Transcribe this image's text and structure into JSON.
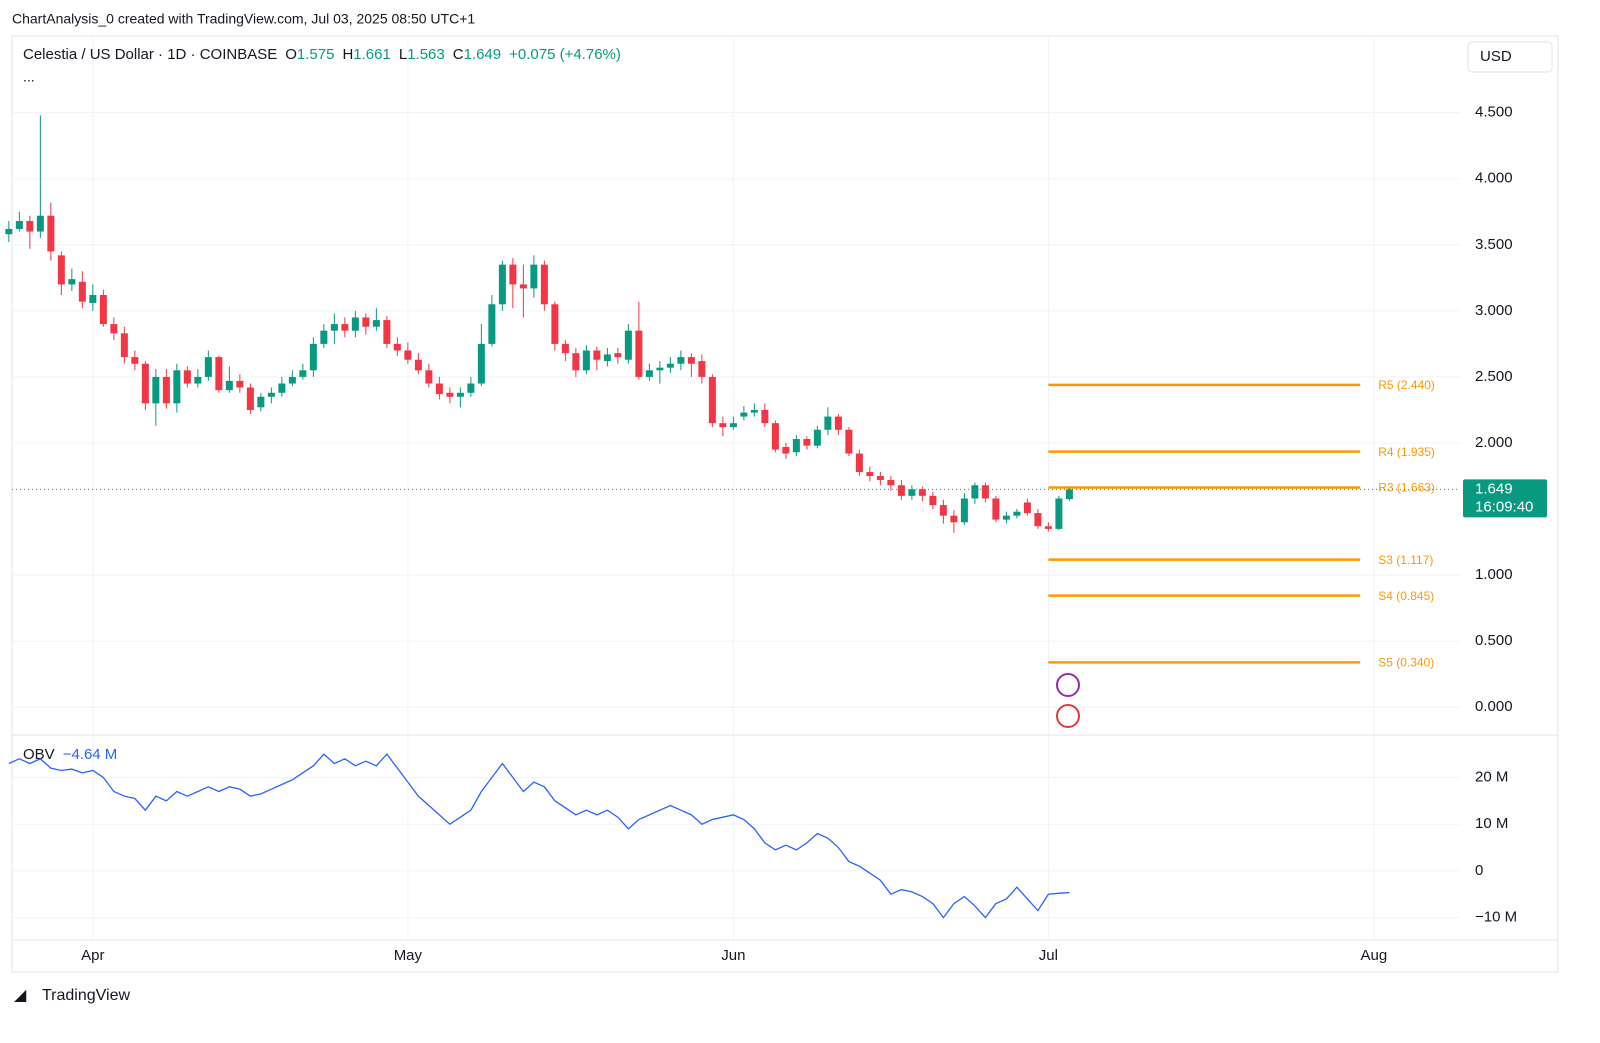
{
  "header": {
    "credit": "ChartAnalysis_0 created with TradingView.com, Jul 03, 2025 08:50 UTC+1",
    "brand": "TradingView",
    "currency_button": "USD"
  },
  "chart_data": {
    "type": "candlestick",
    "title": "Celestia / US Dollar · 1D · COINBASE",
    "ohlc": [
      {
        "label": "O",
        "value": "1.575"
      },
      {
        "label": "H",
        "value": "1.661"
      },
      {
        "label": "L",
        "value": "1.563"
      },
      {
        "label": "C",
        "value": "1.649"
      }
    ],
    "change": "+0.075 (+4.76%)",
    "ellipsis": "...",
    "categories": [
      null,
      null,
      null,
      null,
      null,
      null,
      null,
      null,
      null,
      null,
      null,
      null,
      null,
      null,
      null,
      null,
      null,
      null,
      null,
      null,
      null,
      null,
      null,
      null,
      null,
      null,
      null,
      null,
      null,
      null,
      null,
      null,
      null,
      null,
      null,
      null,
      null,
      null,
      null,
      null,
      null,
      null,
      null,
      null,
      null,
      null,
      null,
      null,
      null,
      null,
      null,
      null,
      null,
      null,
      null,
      null,
      null,
      null,
      null,
      null,
      null,
      null,
      null,
      null,
      null,
      null,
      null,
      null,
      null,
      null,
      null,
      null,
      null,
      null,
      null,
      null,
      null,
      null,
      null,
      null,
      null,
      null,
      null,
      null,
      null,
      null,
      null,
      null,
      null,
      null,
      null,
      null,
      null,
      null,
      null,
      null,
      null,
      null,
      null,
      null,
      null,
      null
    ],
    "open": [
      3.58,
      3.62,
      3.68,
      3.6,
      3.72,
      3.42,
      3.2,
      3.22,
      3.06,
      3.12,
      2.9,
      2.83,
      2.65,
      2.6,
      2.3,
      2.5,
      2.3,
      2.55,
      2.45,
      2.5,
      2.65,
      2.4,
      2.47,
      2.42,
      2.27,
      2.35,
      2.38,
      2.45,
      2.5,
      2.55,
      2.75,
      2.85,
      2.9,
      2.85,
      2.95,
      2.88,
      2.93,
      2.75,
      2.7,
      2.63,
      2.55,
      2.45,
      2.38,
      2.35,
      2.38,
      2.45,
      2.75,
      3.05,
      3.35,
      3.2,
      3.17,
      3.35,
      3.05,
      2.75,
      2.68,
      2.55,
      2.7,
      2.62,
      2.68,
      2.63,
      2.85,
      2.5,
      2.55,
      2.57,
      2.6,
      2.65,
      2.62,
      2.5,
      2.15,
      2.12,
      2.2,
      2.23,
      2.25,
      2.15,
      1.97,
      1.93,
      2.03,
      1.98,
      2.1,
      2.2,
      2.1,
      1.92,
      1.78,
      1.75,
      1.72,
      1.68,
      1.6,
      1.65,
      1.6,
      1.53,
      1.45,
      1.4,
      1.58,
      1.68,
      1.58,
      1.42,
      1.45,
      1.55,
      1.47,
      1.37,
      1.35,
      1.575
    ],
    "high": [
      3.68,
      3.75,
      3.72,
      4.48,
      3.82,
      3.45,
      3.32,
      3.3,
      3.2,
      3.16,
      2.95,
      2.88,
      2.7,
      2.62,
      2.56,
      2.56,
      2.6,
      2.58,
      2.56,
      2.7,
      2.66,
      2.58,
      2.52,
      2.45,
      2.38,
      2.42,
      2.5,
      2.55,
      2.6,
      2.8,
      2.9,
      2.98,
      2.95,
      3.0,
      2.98,
      3.02,
      2.96,
      2.8,
      2.76,
      2.68,
      2.6,
      2.5,
      2.42,
      2.42,
      2.5,
      2.9,
      3.12,
      3.38,
      3.4,
      3.35,
      3.42,
      3.38,
      3.07,
      2.78,
      2.72,
      2.74,
      2.73,
      2.72,
      2.72,
      2.9,
      3.07,
      2.6,
      2.62,
      2.65,
      2.7,
      2.68,
      2.67,
      2.52,
      2.2,
      2.2,
      2.28,
      2.3,
      2.3,
      2.17,
      2.0,
      2.06,
      2.05,
      2.13,
      2.27,
      2.22,
      2.12,
      1.95,
      1.82,
      1.78,
      1.75,
      1.72,
      1.68,
      1.67,
      1.63,
      1.57,
      1.49,
      1.62,
      1.7,
      1.7,
      1.6,
      1.48,
      1.5,
      1.58,
      1.5,
      1.4,
      1.6,
      1.661
    ],
    "low": [
      3.52,
      3.6,
      3.47,
      3.55,
      3.38,
      3.12,
      3.15,
      3.02,
      3.0,
      2.88,
      2.78,
      2.6,
      2.55,
      2.25,
      2.13,
      2.26,
      2.23,
      2.42,
      2.42,
      2.47,
      2.38,
      2.38,
      2.38,
      2.22,
      2.24,
      2.3,
      2.35,
      2.43,
      2.48,
      2.5,
      2.72,
      2.75,
      2.8,
      2.8,
      2.82,
      2.85,
      2.72,
      2.66,
      2.6,
      2.52,
      2.42,
      2.33,
      2.3,
      2.27,
      2.35,
      2.43,
      2.73,
      3.0,
      3.02,
      2.95,
      3.1,
      3.0,
      2.7,
      2.62,
      2.5,
      2.52,
      2.55,
      2.58,
      2.6,
      2.6,
      2.48,
      2.47,
      2.45,
      2.53,
      2.55,
      2.5,
      2.45,
      2.12,
      2.05,
      2.1,
      2.17,
      2.2,
      2.12,
      1.93,
      1.88,
      1.9,
      1.95,
      1.96,
      2.06,
      2.06,
      1.9,
      1.75,
      1.71,
      1.68,
      1.64,
      1.57,
      1.57,
      1.56,
      1.5,
      1.39,
      1.32,
      1.38,
      1.54,
      1.55,
      1.4,
      1.39,
      1.43,
      1.45,
      1.35,
      1.33,
      1.34,
      1.563
    ],
    "close": [
      3.62,
      3.68,
      3.6,
      3.72,
      3.45,
      3.2,
      3.24,
      3.07,
      3.12,
      2.9,
      2.83,
      2.65,
      2.6,
      2.3,
      2.5,
      2.3,
      2.55,
      2.45,
      2.5,
      2.65,
      2.4,
      2.47,
      2.42,
      2.25,
      2.35,
      2.38,
      2.45,
      2.5,
      2.55,
      2.75,
      2.85,
      2.9,
      2.85,
      2.95,
      2.88,
      2.93,
      2.75,
      2.7,
      2.63,
      2.55,
      2.45,
      2.37,
      2.35,
      2.38,
      2.45,
      2.75,
      3.05,
      3.35,
      3.2,
      3.17,
      3.35,
      3.05,
      2.75,
      2.68,
      2.55,
      2.7,
      2.63,
      2.67,
      2.65,
      2.85,
      2.5,
      2.55,
      2.57,
      2.6,
      2.65,
      2.6,
      2.5,
      2.15,
      2.12,
      2.15,
      2.23,
      2.25,
      2.15,
      1.95,
      1.92,
      2.03,
      1.98,
      2.1,
      2.2,
      2.1,
      1.92,
      1.78,
      1.75,
      1.72,
      1.68,
      1.6,
      1.65,
      1.6,
      1.53,
      1.45,
      1.4,
      1.58,
      1.68,
      1.58,
      1.42,
      1.45,
      1.48,
      1.47,
      1.37,
      1.35,
      1.58,
      1.649
    ],
    "up_color": "#089981",
    "down_color": "#f23645",
    "xlim": [
      0.3,
      138.2
    ],
    "xticks": [
      {
        "value": 8,
        "label": "Apr"
      },
      {
        "value": 38,
        "label": "May"
      },
      {
        "value": 69,
        "label": "Jun"
      },
      {
        "value": 99,
        "label": "Jul"
      },
      {
        "value": 130,
        "label": "Aug"
      }
    ],
    "ylim": [
      -0.21,
      5.05
    ],
    "yticks": [
      {
        "value": 0,
        "label": "0.000"
      },
      {
        "value": 0.5,
        "label": "0.500"
      },
      {
        "value": 1,
        "label": "1.000"
      },
      {
        "value": 2,
        "label": "2.000"
      },
      {
        "value": 2.5,
        "label": "2.500"
      },
      {
        "value": 3,
        "label": "3.000"
      },
      {
        "value": 3.5,
        "label": "3.500"
      },
      {
        "value": 4,
        "label": "4.000"
      },
      {
        "value": 4.5,
        "label": "4.500"
      }
    ],
    "grid": true,
    "last_price": 1.649,
    "countdown": "16:09:40",
    "pivot_color": "#ff9800",
    "pivots": [
      {
        "value": 2.44,
        "label": "R5 (2.440)"
      },
      {
        "value": 1.935,
        "label": "R4 (1.935)"
      },
      {
        "value": 1.663,
        "label": "R3 (1.663)"
      },
      {
        "value": 1.117,
        "label": "S3 (1.117)"
      },
      {
        "value": 0.845,
        "label": "S4 (0.845)"
      },
      {
        "value": 0.34,
        "label": "S5 (0.340)"
      }
    ],
    "pivot_start": 99,
    "pivot_end": 128.7,
    "indicator": {
      "name": "OBV",
      "value_label": "−4.64 M",
      "color": "#2962ff",
      "values": [
        23,
        24,
        23,
        24,
        22,
        21.5,
        21.8,
        21,
        21.5,
        20,
        17,
        16,
        15.5,
        13,
        16,
        15,
        17,
        16,
        17,
        18,
        17,
        18,
        17.5,
        16,
        16.5,
        17.5,
        18.5,
        19.5,
        21,
        22.5,
        25,
        23,
        24,
        22.5,
        23.5,
        22.5,
        25,
        22,
        19,
        16,
        14,
        12,
        10,
        11.5,
        13,
        17,
        20,
        23,
        20,
        17,
        19,
        18,
        15,
        13.5,
        12,
        13,
        12,
        13,
        11.5,
        9,
        11,
        12,
        13,
        14,
        13,
        12,
        10,
        11,
        11.5,
        12,
        11,
        9,
        6,
        4.5,
        5.5,
        4.5,
        6,
        8,
        7,
        5,
        2,
        1,
        -0.5,
        -2,
        -5,
        -4,
        -4.5,
        -5.5,
        -7,
        -10,
        -7,
        -5.5,
        -7.5,
        -10,
        -7,
        -6,
        -3.5,
        -6,
        -8.5,
        -5,
        -4.8,
        -4.64
      ],
      "ylim": [
        -14.8,
        29.1
      ],
      "yticks": [
        {
          "value": -10,
          "label": "−10 M"
        },
        0,
        {
          "value": 10,
          "label": "10 M"
        },
        {
          "value": 20,
          "label": "20 M"
        }
      ]
    }
  }
}
